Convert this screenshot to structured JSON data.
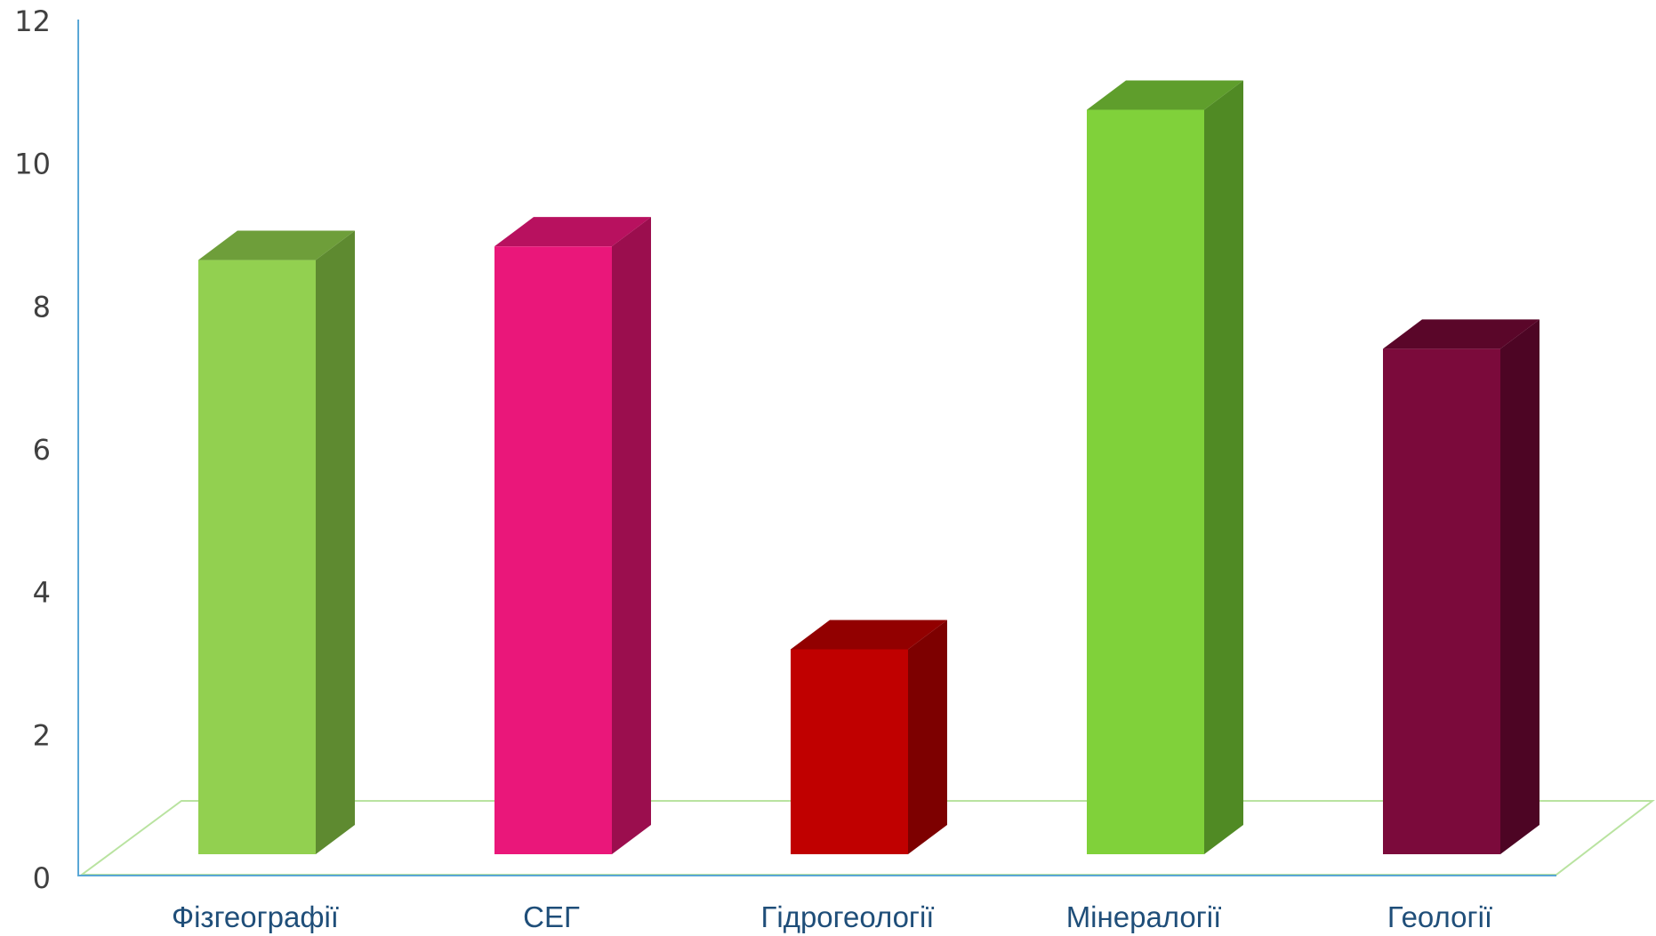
{
  "chart_data": {
    "type": "bar",
    "style": "3d-column",
    "categories": [
      "Фізгеографії",
      "СЕГ",
      "Гідрогеології",
      "Мінералогії",
      "Геології"
    ],
    "values": [
      8.7,
      8.9,
      3.0,
      10.9,
      7.4
    ],
    "bar_colors": [
      {
        "front": "#92d050",
        "top": "#6e9e3a",
        "side": "#5e8a30"
      },
      {
        "front": "#ea177a",
        "top": "#b8115f",
        "side": "#9b0e4e"
      },
      {
        "front": "#c00000",
        "top": "#920000",
        "side": "#7d0000"
      },
      {
        "front": "#80d13a",
        "top": "#5f9e2c",
        "side": "#508a24"
      },
      {
        "front": "#7b0a3b",
        "top": "#5a0629",
        "side": "#4d0524"
      }
    ],
    "title": "",
    "xlabel": "",
    "ylabel": "",
    "ylim": [
      0,
      12
    ],
    "yticks": [
      "0",
      "2",
      "4",
      "6",
      "8",
      "10",
      "12"
    ],
    "grid": false,
    "legend": "none",
    "axis_color": "#5aa7d6",
    "floor_color": "#b9e3a0"
  }
}
